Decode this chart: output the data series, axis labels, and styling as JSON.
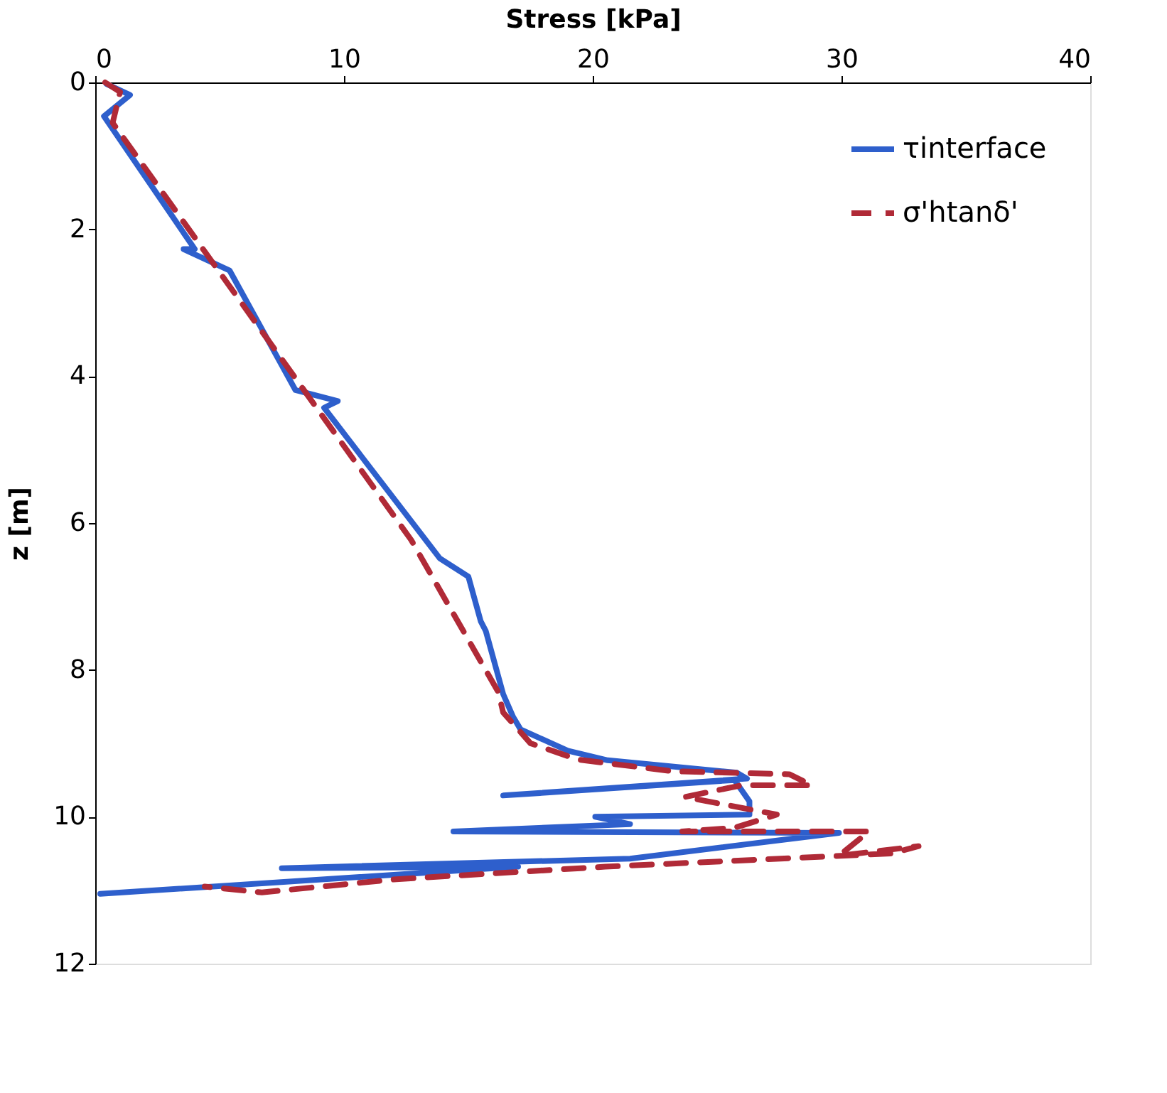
{
  "chart_data": {
    "type": "line",
    "xlabel": "Stress [kPa]",
    "ylabel": "z [m]",
    "xlim": [
      0,
      40
    ],
    "xticks": [
      0,
      10,
      20,
      30,
      40
    ],
    "ylim": [
      12,
      0
    ],
    "yticks": [
      0,
      2,
      4,
      6,
      8,
      10,
      12
    ],
    "grid": false,
    "legend": "top right",
    "series": [
      {
        "name": "τinterface",
        "color": "#2e5fcc",
        "line_style": "solid",
        "x": [
          0.45,
          1.4,
          0.35,
          4.0,
          3.55,
          5.4,
          8.05,
          9.75,
          9.2,
          13.85,
          15.0,
          15.5,
          15.7,
          16.4,
          16.8,
          17.1,
          19.0,
          20.6,
          25.8,
          26.2,
          16.4,
          25.7,
          26.3,
          26.3,
          20.1,
          21.5,
          14.4,
          29.9,
          21.5,
          7.5,
          17.0,
          0.2
        ],
        "values": [
          0.02,
          0.17,
          0.46,
          2.27,
          2.27,
          2.56,
          4.19,
          4.34,
          4.43,
          6.48,
          6.73,
          7.34,
          7.47,
          8.33,
          8.64,
          8.81,
          9.1,
          9.23,
          9.4,
          9.48,
          9.71,
          9.5,
          9.79,
          9.97,
          10.0,
          10.1,
          10.2,
          10.22,
          10.57,
          10.7,
          10.68,
          11.05
        ]
      },
      {
        "name": "σ'htanδ'",
        "color": "#b02a37",
        "line_style": "dashed",
        "x": [
          0.4,
          1.0,
          0.7,
          12.7,
          16.2,
          16.4,
          17.5,
          19.4,
          23.2,
          27.9,
          28.8,
          26.0,
          23.7,
          27.4,
          25.7,
          23.6,
          31.1,
          29.9,
          33.1,
          32.0,
          20.5,
          12.1,
          6.7,
          4.4
        ],
        "values": [
          0.0,
          0.13,
          0.55,
          6.23,
          8.3,
          8.58,
          9.0,
          9.22,
          9.38,
          9.42,
          9.57,
          9.57,
          9.73,
          9.97,
          10.15,
          10.2,
          10.2,
          10.53,
          10.4,
          10.5,
          10.68,
          10.85,
          11.03,
          10.95
        ]
      }
    ]
  }
}
